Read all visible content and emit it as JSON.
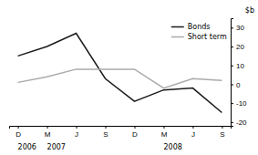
{
  "chart_data": {
    "type": "line",
    "categories": [
      "D",
      "M",
      "J",
      "S",
      "D",
      "M",
      "J",
      "S"
    ],
    "series": [
      {
        "name": "Bonds",
        "color": "#1a1a1a",
        "values": [
          15,
          20,
          27,
          3,
          -9,
          -3,
          -2,
          -15
        ]
      },
      {
        "name": "Short term",
        "color": "#aaaaaa",
        "values": [
          1,
          4,
          8,
          8,
          8,
          -2,
          3,
          2
        ]
      }
    ],
    "ylabel": "$b",
    "ylim": [
      -22,
      35
    ],
    "yticks": [
      -20,
      -10,
      0,
      10,
      20,
      30
    ],
    "annotations": [
      {
        "text": "2006",
        "x": 0
      },
      {
        "text": "2007",
        "x": 1
      },
      {
        "text": "2008",
        "x": 5
      }
    ],
    "legend": "upper right",
    "grid": false
  }
}
